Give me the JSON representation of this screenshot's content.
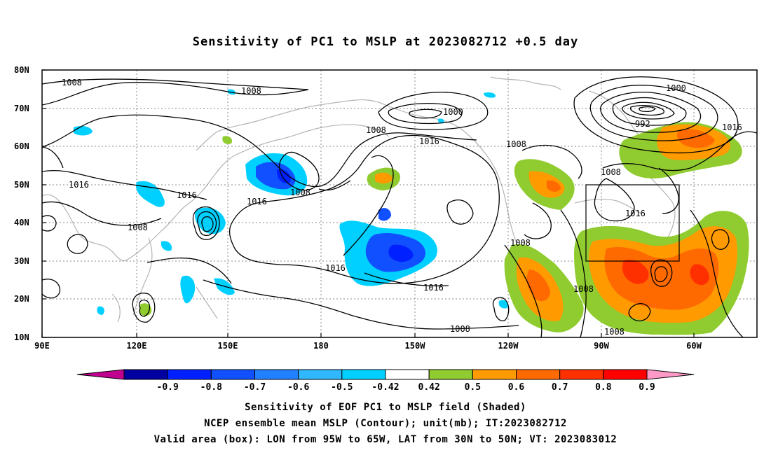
{
  "title": "Sensitivity of PC1 to MSLP at 2023082712 +0.5 day",
  "lat_labels": [
    "80N",
    "70N",
    "60N",
    "50N",
    "40N",
    "30N",
    "20N",
    "10N"
  ],
  "lon_labels": [
    "90E",
    "120E",
    "150E",
    "180",
    "150W",
    "120W",
    "90W",
    "60W"
  ],
  "map_extent": {
    "lon_east_min": 90,
    "lon_east_max": 310,
    "lat_min": 10,
    "lat_max": 80
  },
  "contour_labels": [
    "1008",
    "1008",
    "1000",
    "1008",
    "1016",
    "1008",
    "1000",
    "992",
    "1016",
    "1016",
    "1016",
    "1008",
    "1016",
    "1008",
    "1016",
    "1008",
    "1016",
    "1008",
    "1008",
    "1008",
    "1008"
  ],
  "valid_box": {
    "lon_west": [
      95,
      65
    ],
    "lat_north": [
      30,
      50
    ]
  },
  "colorbar": {
    "labels": [
      "-0.9",
      "-0.8",
      "-0.7",
      "-0.6",
      "-0.5",
      "-0.42",
      "0.42",
      "0.5",
      "0.6",
      "0.7",
      "0.8",
      "0.9"
    ],
    "colors": [
      "#c0008f",
      "#0000a0",
      "#0020ff",
      "#1050ff",
      "#2080ff",
      "#30b8ff",
      "#00d0ff",
      "#ffffff",
      "#90cc30",
      "#ff9a00",
      "#ff6a00",
      "#ff3000",
      "#ff0000",
      "#ff99c8"
    ]
  },
  "captions": [
    "Sensitivity of EOF PC1 to MSLP field (Shaded)",
    "NCEP ensemble mean MSLP (Contour); unit(mb); IT:2023082712",
    "Valid area (box): LON from 95W to 65W, LAT from 30N to 50N; VT: 2023083012"
  ]
}
